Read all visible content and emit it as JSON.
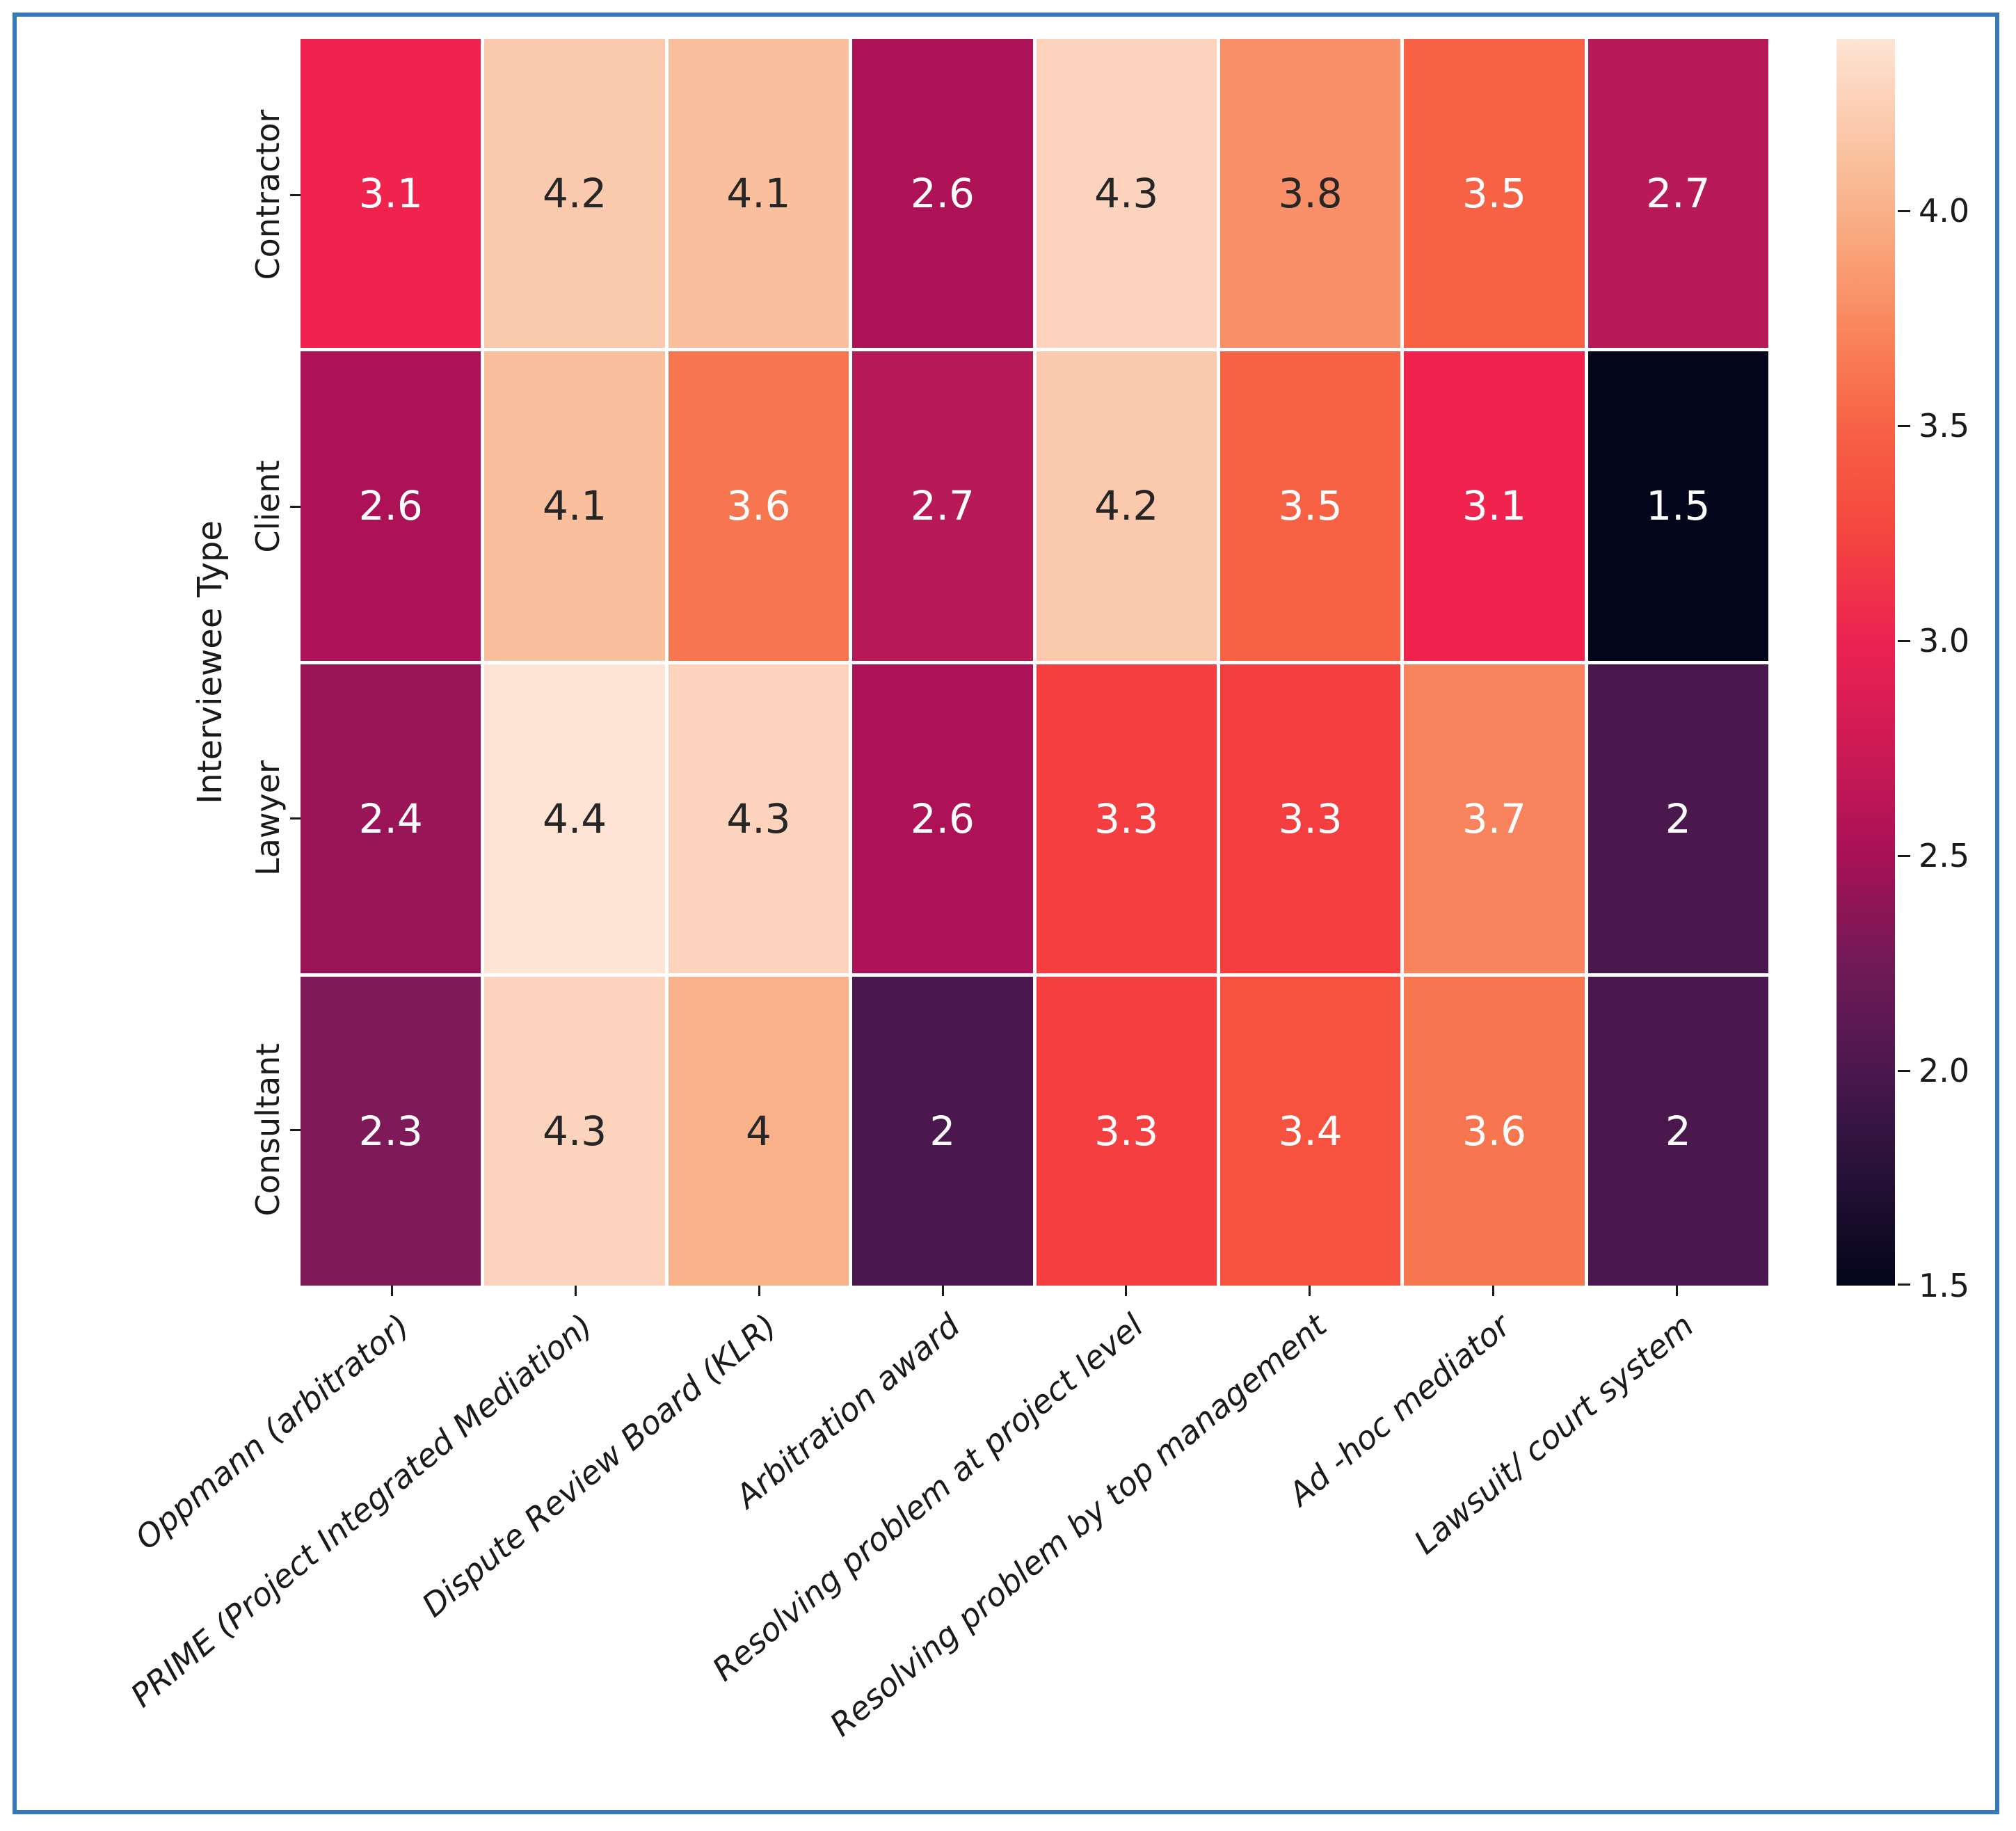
{
  "figure": {
    "border_color": "#357AB4",
    "background": "#FFFFFF"
  },
  "chart_data": {
    "type": "heatmap",
    "title": "",
    "xlabel": "",
    "ylabel": "Interviewee Type",
    "rows": [
      "Contractor",
      "Client",
      "Lawyer",
      "Consultant"
    ],
    "columns": [
      "Oppmann (arbitrator)",
      "PRIME (Project Integrated Mediation)",
      "Dispute Review Board (KLR)",
      "Arbitration award",
      "Resolving problem at project level",
      "Resolving problem by top management",
      "Ad -hoc mediator",
      "Lawsuit/ court system"
    ],
    "values": [
      [
        3.1,
        4.2,
        4.1,
        2.6,
        4.3,
        3.8,
        3.5,
        2.7
      ],
      [
        2.6,
        4.1,
        3.6,
        2.7,
        4.2,
        3.5,
        3.1,
        1.5
      ],
      [
        2.4,
        4.4,
        4.3,
        2.6,
        3.3,
        3.3,
        3.7,
        2
      ],
      [
        2.3,
        4.3,
        4,
        2,
        3.3,
        3.4,
        3.6,
        2
      ]
    ],
    "vmin": 1.5,
    "vmax": 4.4,
    "colormap": "rocket",
    "grid_line_color": "#FFFFFF",
    "annot_text_dark": "#262626",
    "annot_text_light": "#FFFFFF",
    "cell_colors": {
      "1.5": "#03051A",
      "2": "#4A184E",
      "2.3": "#7D1A57",
      "2.4": "#9A1458",
      "2.6": "#AD1257",
      "2.7": "#B81A58",
      "3.1": "#F0234E",
      "3.3": "#F43E3F",
      "3.4": "#F6523F",
      "3.5": "#F76245",
      "3.6": "#F8764F",
      "3.7": "#F9835C",
      "3.8": "#FA9069",
      "4": "#F9B189",
      "4.1": "#FABF9C",
      "4.2": "#FBCAAE",
      "4.3": "#FCD4BE",
      "4.4": "#FDE4D4"
    },
    "colorbar": {
      "tick_labels": [
        "4.0",
        "3.5",
        "3.0",
        "2.5",
        "2.0",
        "1.5"
      ],
      "tick_values": [
        4.0,
        3.5,
        3.0,
        2.5,
        2.0,
        1.5
      ],
      "gradient": [
        [
          1.5,
          "#03051A"
        ],
        [
          1.75,
          "#251136"
        ],
        [
          2.0,
          "#4A184E"
        ],
        [
          2.25,
          "#711A57"
        ],
        [
          2.5,
          "#A81156"
        ],
        [
          2.75,
          "#CD1A55"
        ],
        [
          3.0,
          "#EC2251"
        ],
        [
          3.25,
          "#F4463F"
        ],
        [
          3.5,
          "#F76245"
        ],
        [
          3.75,
          "#F98A60"
        ],
        [
          4.0,
          "#F9B189"
        ],
        [
          4.2,
          "#FBCAAC"
        ],
        [
          4.4,
          "#FDE4D4"
        ]
      ]
    }
  }
}
